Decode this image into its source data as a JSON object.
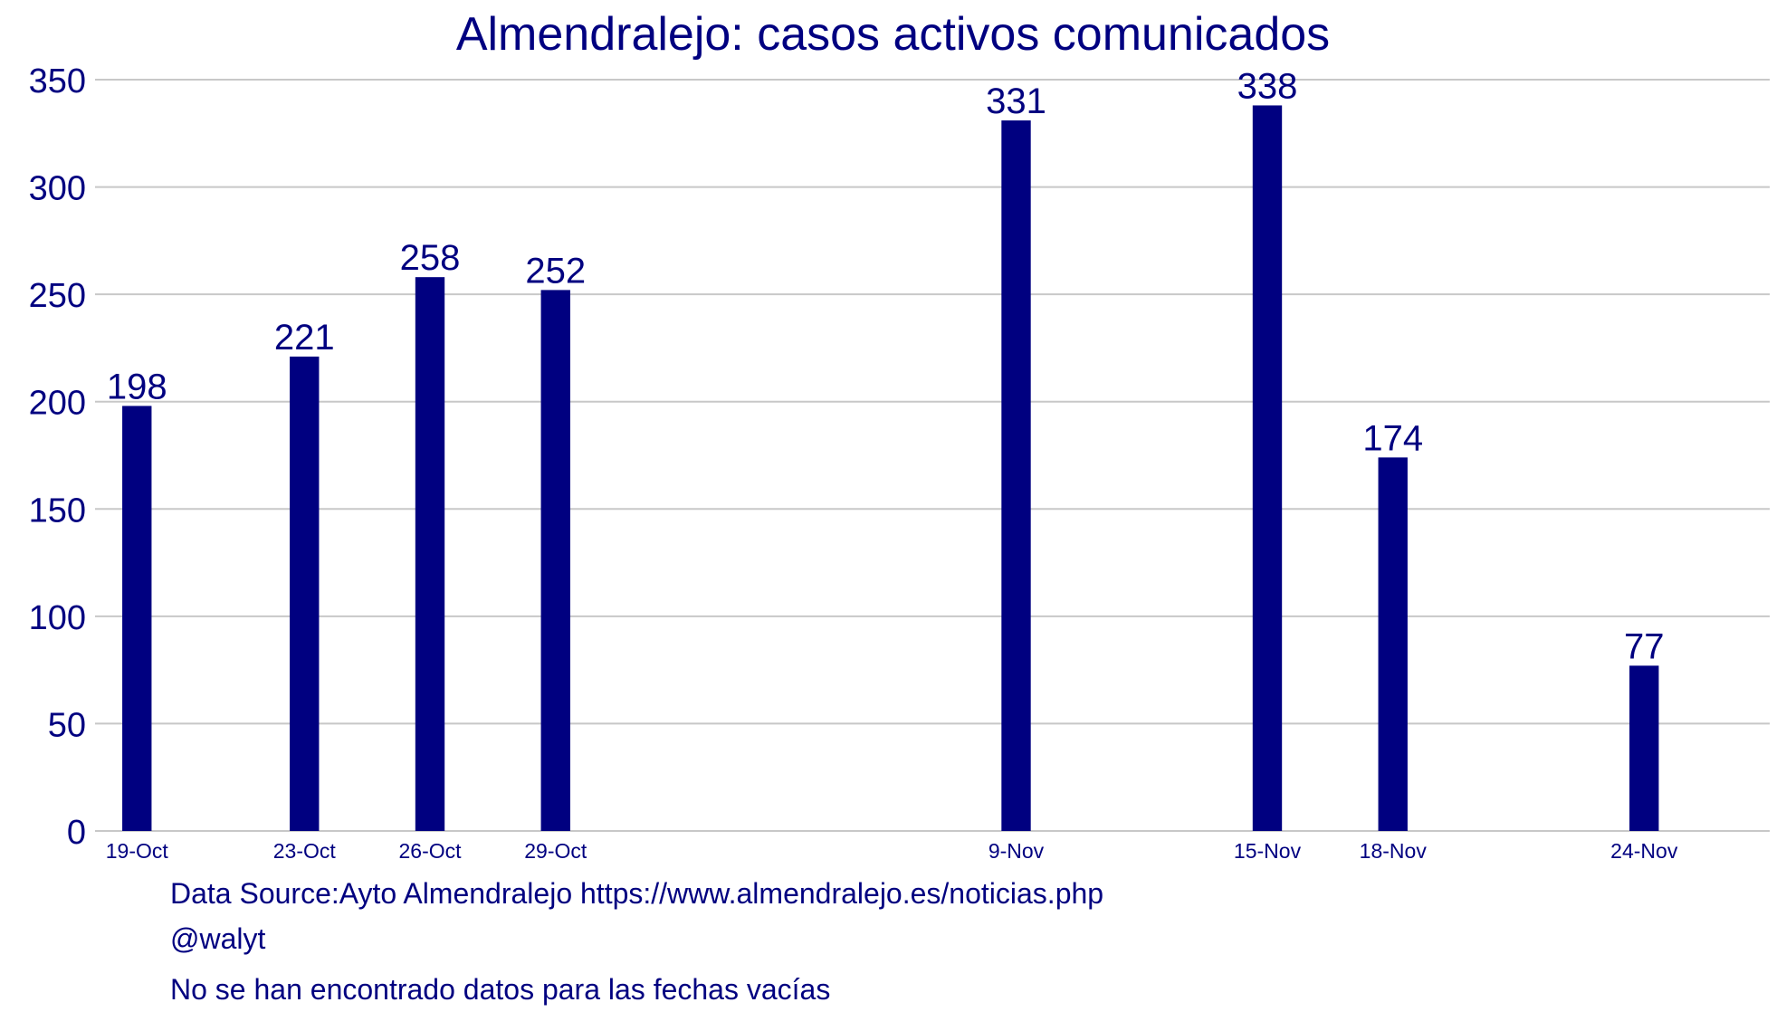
{
  "colors": {
    "bar": "#000080",
    "text": "#000080",
    "grid": "#c8c8c8"
  },
  "chart_data": {
    "type": "bar",
    "title": "Almendralejo: casos activos comunicados",
    "xlabel": "",
    "ylabel": "",
    "ylim": [
      0,
      350
    ],
    "yticks": [
      "0",
      "50",
      "100",
      "150",
      "200",
      "250",
      "300",
      "350"
    ],
    "grid": true,
    "x_start": "2020-10-18",
    "x_end": "2020-11-27",
    "points": [
      {
        "date": "2020-10-19",
        "label": "19-Oct",
        "value": 198
      },
      {
        "date": "2020-10-23",
        "label": "23-Oct",
        "value": 221
      },
      {
        "date": "2020-10-26",
        "label": "26-Oct",
        "value": 258
      },
      {
        "date": "2020-10-29",
        "label": "29-Oct",
        "value": 252
      },
      {
        "date": "2020-11-09",
        "label": "9-Nov",
        "value": 331
      },
      {
        "date": "2020-11-15",
        "label": "15-Nov",
        "value": 338
      },
      {
        "date": "2020-11-18",
        "label": "18-Nov",
        "value": 174
      },
      {
        "date": "2020-11-24",
        "label": "24-Nov",
        "value": 77
      }
    ]
  },
  "footer": {
    "source": "Data Source:Ayto Almendralejo https://www.almendralejo.es/noticias.php",
    "author": "@walyt",
    "note": "No se han encontrado datos para las fechas vacías"
  }
}
